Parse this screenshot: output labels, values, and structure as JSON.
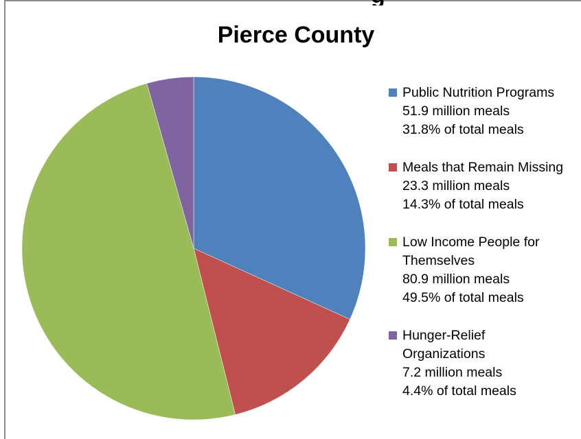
{
  "top_fragment": "g",
  "chart_data": {
    "type": "pie",
    "title": "Pierce County",
    "slices": [
      {
        "label": "Public Nutrition Programs",
        "label_lines": [
          "Public Nutrition Programs"
        ],
        "meals": "51.9 million meals",
        "percent_text": "31.8% of total meals",
        "value": 31.8,
        "color": "#4f81bd"
      },
      {
        "label": "Meals that Remain Missing",
        "label_lines": [
          "Meals that Remain Missing"
        ],
        "meals": "23.3 million meals",
        "percent_text": "14.3% of total meals",
        "value": 14.3,
        "color": "#c0504d"
      },
      {
        "label": "Low Income People for Themselves",
        "label_lines": [
          "Low Income People for",
          "Themselves"
        ],
        "meals": "80.9 million meals",
        "percent_text": "49.5% of total meals",
        "value": 49.5,
        "color": "#9bbb59"
      },
      {
        "label": "Hunger-Relief Organizations",
        "label_lines": [
          "Hunger-Relief",
          "Organizations"
        ],
        "meals": "7.2 million meals",
        "percent_text": "4.4% of total meals",
        "value": 4.4,
        "color": "#8064a2"
      }
    ],
    "legend_position": "right"
  }
}
